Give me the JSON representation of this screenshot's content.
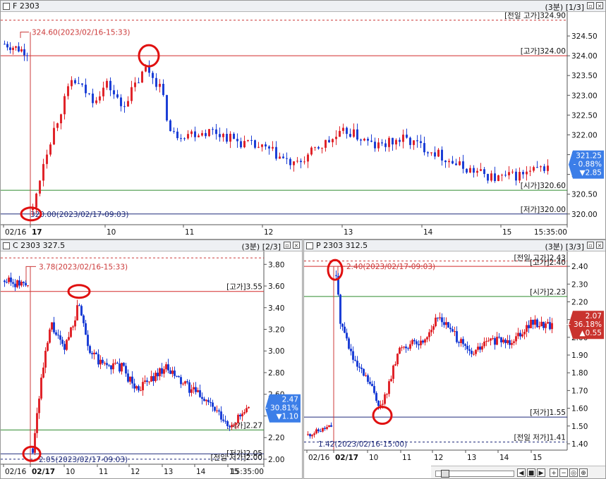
{
  "colors": {
    "up": "#e0242a",
    "down": "#1c3fd6",
    "high_line": "#d32a2a",
    "open_line": "#2e8b2e",
    "low_line": "#1e2a7a",
    "prev_line": "#cc3b3b",
    "circle": "#e01010",
    "price_box_blue": "#3c7ee8",
    "price_box_red": "#c9332e"
  },
  "panel_f": {
    "title": "F 2303",
    "right_label": "(3분) [1/3]",
    "annotations": {
      "high_point": "324.60(2023/02/16-15:33)",
      "low_point": "320.00(2023/02/17-09:03)"
    },
    "level_labels": {
      "prev_high": "[전일 고가]324.90",
      "high": "[고가]324.00",
      "open": "[시가]320.60",
      "low": "[저가]320.00"
    },
    "price_box": [
      "321.25",
      "- 0.88%",
      "▼2.85"
    ],
    "y_ticks": [
      "324.50",
      "324.00",
      "323.50",
      "323.00",
      "322.50",
      "322.00",
      "321.50",
      "321.00",
      "320.50",
      "320.00"
    ],
    "x_ticks": [
      "02/16",
      "17",
      "10",
      "11",
      "12",
      "13",
      "14",
      "15",
      "15:35:00"
    ],
    "chart_data": {
      "type": "candlestick",
      "series_summary": {
        "prev_high": 324.9,
        "high": 324.0,
        "open": 320.6,
        "low": 320.0,
        "last": 321.25,
        "change_pct": -0.88,
        "change": -2.85
      },
      "ylim": [
        319.8,
        325.0
      ]
    }
  },
  "panel_c": {
    "title": "C 2303 327.5",
    "right_label": "(3분) [2/3]",
    "annotations": {
      "high_point": "3.78(2023/02/16-15:33)",
      "low_point": "2.05(2023/02/17-09:03)"
    },
    "level_labels": {
      "high": "[고가]3.55",
      "open": "[시가]2.27",
      "low": "[저가]2.05",
      "prev_low": "[전일 저가]2.00"
    },
    "price_box": [
      "2.47",
      "- 30.81%",
      "▼1.10"
    ],
    "y_ticks": [
      "3.80",
      "3.60",
      "3.40",
      "3.20",
      "3.00",
      "2.80",
      "2.60",
      "2.40",
      "2.20",
      "2.00"
    ],
    "x_ticks": [
      "02/16",
      "02/17",
      "10",
      "11",
      "12",
      "13",
      "14",
      "15",
      "15:35:00"
    ],
    "chart_data": {
      "type": "candlestick",
      "series_summary": {
        "high": 3.55,
        "open": 2.27,
        "low": 2.05,
        "prev_low": 2.0,
        "last": 2.47,
        "change_pct": -30.81,
        "change": -1.1
      },
      "ylim": [
        1.98,
        3.88
      ]
    }
  },
  "panel_p": {
    "title": "P 2303 312.5",
    "right_label": "(3분) [3/3]",
    "annotations": {
      "high_point": "2.40(2023/02/17-09:03)",
      "low_point": "1.42(2023/02/16-15:00)"
    },
    "level_labels": {
      "prev_high": "[전일 고가]2.43",
      "high": "[고가]2.40",
      "open": "[시가]2.23",
      "low": "[저가]1.55",
      "prev_low": "[전일 저가]1.41"
    },
    "price_box": [
      "2.07",
      "+ 36.18%",
      "▲0.55"
    ],
    "y_ticks": [
      "2.40",
      "2.30",
      "2.20",
      "2.10",
      "2.00",
      "1.90",
      "1.80",
      "1.70",
      "1.60",
      "1.50",
      "1.40"
    ],
    "x_ticks": [
      "02/16",
      "02/17",
      "10",
      "11",
      "12",
      "13",
      "14",
      "15"
    ],
    "chart_data": {
      "type": "candlestick",
      "series_summary": {
        "prev_high": 2.43,
        "high": 2.4,
        "open": 2.23,
        "low": 1.55,
        "prev_low": 1.41,
        "last": 2.07,
        "change_pct": 36.18,
        "change": 0.55
      },
      "ylim": [
        1.38,
        2.46
      ]
    }
  },
  "controls": {
    "btn_close": "×",
    "btn_restore": "▫",
    "sb_left": "◀",
    "sb_right": "▶",
    "sb_stop": "■",
    "sb_next": "▶",
    "zoom_in": "+",
    "zoom_out": "−",
    "zoom_fit": "◎",
    "zoom_reset": "⊕"
  }
}
